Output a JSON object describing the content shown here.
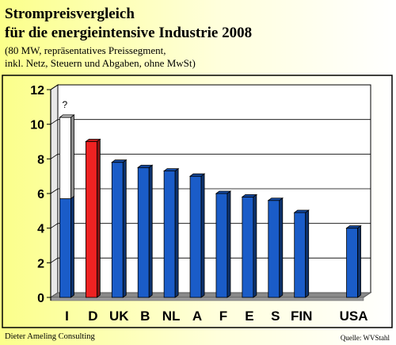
{
  "page": {
    "title_line1": "Strompreisvergleich",
    "title_line2": "für die energieintensive Industrie 2008",
    "subtitle_line1": "(80 MW, repräsentatives Preissegment,",
    "subtitle_line2": "inkl. Netz, Steuern und Abgaben, ohne MwSt)",
    "footer_left": "Dieter Ameling Consulting",
    "footer_right": "Quelle: WVStahl"
  },
  "chart_data": {
    "type": "bar",
    "title": "Strompreisvergleich für die energieintensive Industrie 2008",
    "subtitle": "(80 MW, repräsentatives Preissegment, inkl. Netz, Steuern und Abgaben, ohne MwSt)",
    "categories": [
      "I",
      "D",
      "UK",
      "B",
      "NL",
      "A",
      "F",
      "E",
      "S",
      "FIN",
      "",
      "USA"
    ],
    "values": [
      5.7,
      9.0,
      7.8,
      7.5,
      7.3,
      7.0,
      6.0,
      5.8,
      5.6,
      4.9,
      0,
      4.0
    ],
    "stacked_upper_segment": {
      "category": "I",
      "from": 5.7,
      "to": 10.4,
      "color": "#ffffff",
      "annotation": "?"
    },
    "highlight": {
      "category": "D",
      "color": "#ee2222"
    },
    "ylim": [
      0,
      12
    ],
    "yticks": [
      0,
      2,
      4,
      6,
      8,
      10,
      12
    ],
    "xlabel": "",
    "ylabel": "",
    "grid": true,
    "colors": {
      "bar": "#1a5cc8",
      "highlight": "#ee2222",
      "floor": "#8a8a8a",
      "plot_bg": "#ffffff"
    }
  }
}
